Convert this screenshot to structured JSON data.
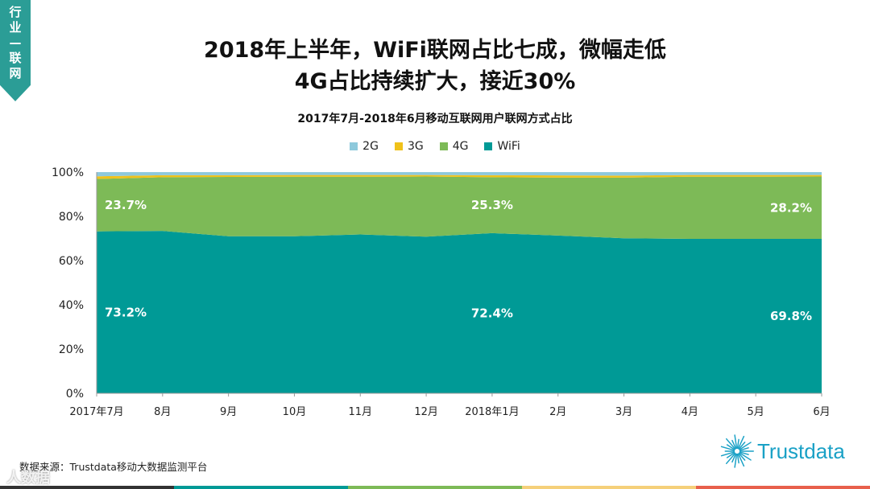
{
  "side_tab": {
    "chars": [
      "行",
      "业",
      "—",
      "联",
      "网"
    ]
  },
  "title": {
    "line1": "2018年上半年，WiFi联网占比七成，微幅走低",
    "line2": "4G占比持续扩大，接近30%"
  },
  "source": "数据来源：Trustdata移动大数据监测平台",
  "watermark": "人数据",
  "logo": {
    "text": "Trustdata",
    "icon": "starburst-icon"
  },
  "colors": {
    "wifi": "#009a96",
    "g4": "#7dba57",
    "g3": "#f0c21a",
    "g2": "#8ec9dc",
    "side_tab": "#2b9d96",
    "logo": "#1aa1c6",
    "bottom_bar": [
      "#333333",
      "#009a96",
      "#7dba57",
      "#f5d07a",
      "#e8604c"
    ]
  },
  "chart_data": {
    "type": "area",
    "stacked": true,
    "title": "2017年7月-2018年6月移动互联网用户联网方式占比",
    "categories": [
      "2017年7月",
      "8月",
      "9月",
      "10月",
      "11月",
      "12月",
      "2018年1月",
      "2月",
      "3月",
      "4月",
      "5月",
      "6月"
    ],
    "yticks": [
      "0%",
      "20%",
      "40%",
      "60%",
      "80%",
      "100%"
    ],
    "ylim": [
      0,
      100
    ],
    "legend_position": "top-center",
    "series": [
      {
        "name": "WiFi",
        "key": "wifi",
        "values": [
          73.2,
          73.4,
          71.0,
          71.0,
          71.8,
          70.8,
          72.4,
          71.3,
          70.1,
          69.8,
          69.8,
          69.8
        ]
      },
      {
        "name": "4G",
        "key": "g4",
        "values": [
          23.7,
          24.3,
          26.8,
          26.9,
          26.1,
          27.2,
          25.3,
          26.2,
          27.4,
          28.1,
          28.1,
          28.2
        ]
      },
      {
        "name": "3G",
        "key": "g3",
        "values": [
          1.2,
          0.9,
          0.8,
          0.8,
          0.8,
          0.7,
          0.9,
          1.0,
          0.9,
          0.8,
          0.8,
          0.7
        ]
      },
      {
        "name": "2G",
        "key": "g2",
        "values": [
          1.9,
          1.4,
          1.4,
          1.3,
          1.3,
          1.3,
          1.4,
          1.5,
          1.6,
          1.3,
          1.3,
          1.3
        ]
      }
    ],
    "data_labels": [
      {
        "series": "4G",
        "index": 0,
        "text": "23.7%"
      },
      {
        "series": "4G",
        "index": 6,
        "text": "25.3%"
      },
      {
        "series": "4G",
        "index": 11,
        "text": "28.2%"
      },
      {
        "series": "WiFi",
        "index": 0,
        "text": "73.2%"
      },
      {
        "series": "WiFi",
        "index": 6,
        "text": "72.4%"
      },
      {
        "series": "WiFi",
        "index": 11,
        "text": "69.8%"
      }
    ]
  }
}
